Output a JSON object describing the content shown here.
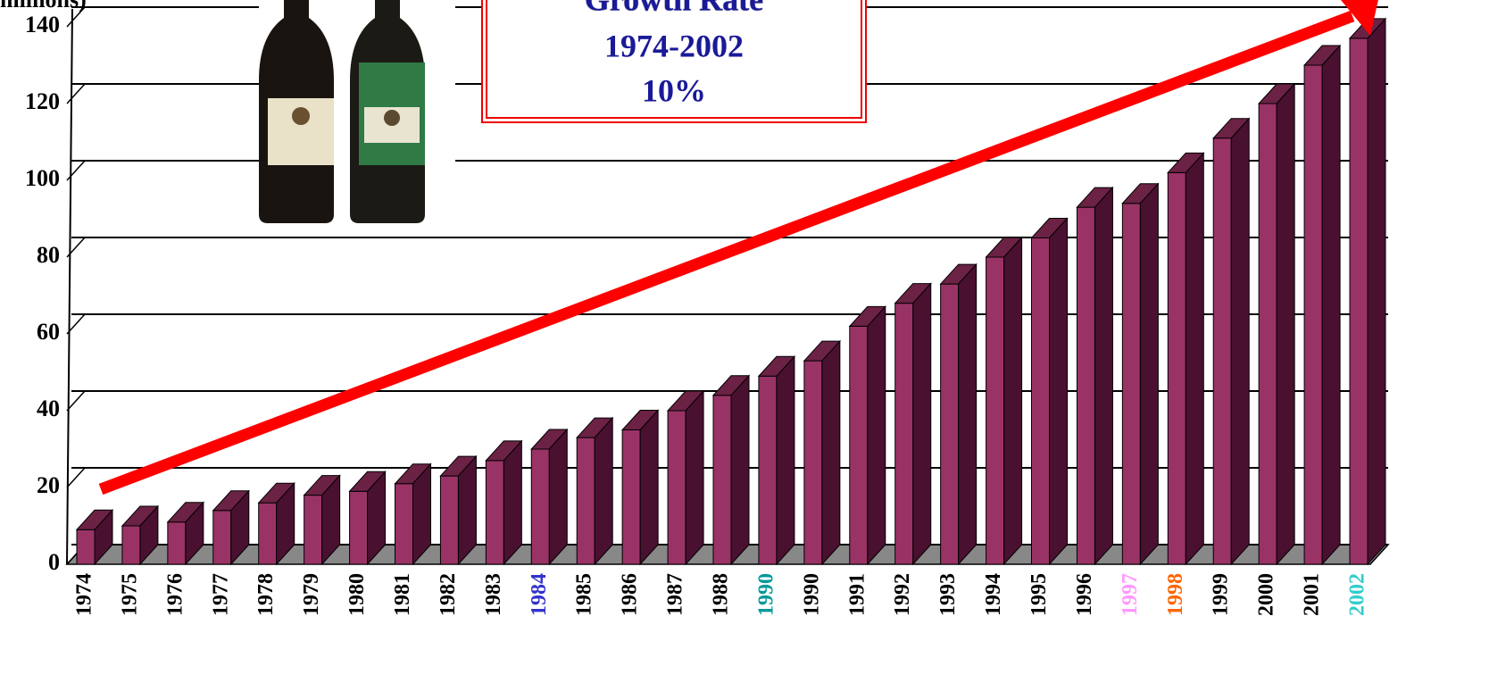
{
  "chart_data": {
    "type": "bar3d",
    "ylabel": "millions)",
    "annotation": [
      "Growth Rate",
      "1974-2002",
      "10%"
    ],
    "categories": [
      "1974",
      "1975",
      "1976",
      "1977",
      "1978",
      "1979",
      "1980",
      "1981",
      "1982",
      "1983",
      "1984",
      "1985",
      "1986",
      "1987",
      "1988",
      "1990",
      "1990",
      "1991",
      "1992",
      "1993",
      "1994",
      "1995",
      "1996",
      "1997",
      "1998",
      "1999",
      "2000",
      "2001",
      "2002"
    ],
    "category_colors": [
      "#000000",
      "#000000",
      "#000000",
      "#000000",
      "#000000",
      "#000000",
      "#000000",
      "#000000",
      "#000000",
      "#000000",
      "#3333cc",
      "#000000",
      "#000000",
      "#000000",
      "#000000",
      "#009999",
      "#000000",
      "#000000",
      "#000000",
      "#000000",
      "#000000",
      "#000000",
      "#000000",
      "#ff99ff",
      "#ff6600",
      "#000000",
      "#000000",
      "#000000",
      "#33cccc"
    ],
    "values": [
      9,
      10,
      11,
      14,
      16,
      18,
      19,
      21,
      23,
      27,
      30,
      33,
      35,
      40,
      44,
      49,
      53,
      62,
      68,
      73,
      80,
      85,
      93,
      94,
      102,
      111,
      120,
      130,
      137
    ],
    "color": "#993366",
    "ylim": [
      0,
      140
    ],
    "yticks": [
      0,
      20,
      40,
      60,
      80,
      100,
      120,
      140
    ],
    "grid": true
  }
}
